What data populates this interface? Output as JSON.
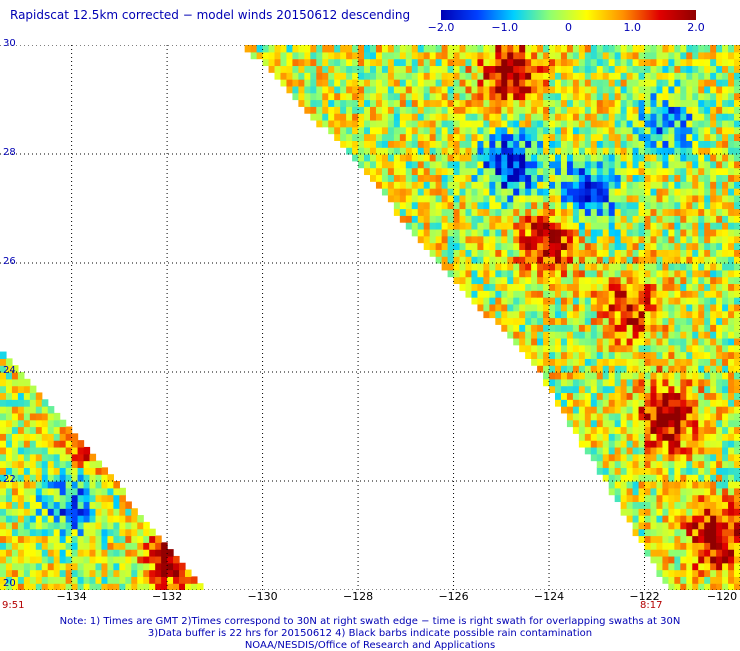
{
  "title": "Rapidscat 12.5km corrected − model winds 20150612 descending",
  "colorbar": {
    "labels": [
      "−2.0",
      "−1.0",
      "0",
      "1.0",
      "2.0"
    ],
    "values": [
      -2.0,
      -1.0,
      0,
      1.0,
      2.0
    ],
    "stops": [
      "#0000b4",
      "#0040ff",
      "#00d0ff",
      "#90ff70",
      "#ffff00",
      "#ff9000",
      "#e00000",
      "#900000"
    ]
  },
  "chart_data": {
    "type": "heatmap",
    "title": "Rapidscat 12.5km corrected − model winds 20150612 descending",
    "xlim": [
      -135.5,
      -120
    ],
    "ylim": [
      20,
      30
    ],
    "x_ticks": [
      "−134",
      "−132",
      "−130",
      "−128",
      "−126",
      "−124",
      "−122",
      "−120"
    ],
    "x_tick_values": [
      -134,
      -132,
      -130,
      -128,
      -126,
      -124,
      -122,
      -120
    ],
    "y_ticks": [
      "20",
      "22",
      "24",
      "26",
      "28",
      "30"
    ],
    "y_tick_values": [
      20,
      22,
      24,
      26,
      28,
      30
    ],
    "grid": true,
    "value_range": [
      -2.0,
      2.0
    ],
    "swaths": [
      {
        "region": "northeast",
        "polygon": [
          [
            -130.4,
            30
          ],
          [
            -120,
            30
          ],
          [
            -120,
            20
          ],
          [
            -121.5,
            20
          ],
          [
            -124.2,
            24
          ],
          [
            -126.3,
            26
          ],
          [
            -128.2,
            28
          ]
        ]
      },
      {
        "region": "southwest",
        "polygon": [
          [
            -135.5,
            24.5
          ],
          [
            -131.2,
            20
          ],
          [
            -135.5,
            20
          ]
        ]
      }
    ],
    "hotspots": [
      {
        "lon": -124.8,
        "lat": 29.5,
        "value": 2.0
      },
      {
        "lon": -124.8,
        "lat": 27.8,
        "value": -2.0
      },
      {
        "lon": -123.2,
        "lat": 27.3,
        "value": -1.8
      },
      {
        "lon": -121.5,
        "lat": 28.6,
        "value": -1.2
      },
      {
        "lon": -124.0,
        "lat": 26.4,
        "value": 1.8
      },
      {
        "lon": -122.3,
        "lat": 25.2,
        "value": 1.4
      },
      {
        "lon": -121.5,
        "lat": 23.2,
        "value": 2.0
      },
      {
        "lon": -120.5,
        "lat": 21.0,
        "value": 2.0
      },
      {
        "lon": -133.5,
        "lat": 22.8,
        "value": 1.7
      },
      {
        "lon": -131.8,
        "lat": 20.6,
        "value": 1.9
      },
      {
        "lon": -134.0,
        "lat": 21.6,
        "value": -1.3
      }
    ]
  },
  "times": {
    "left": "9:51",
    "right": "8:17"
  },
  "notes": [
    "Note: 1) Times are GMT 2)Times correspond to 30N at right swath edge − time is right swath for overlapping swaths at 30N",
    "3)Data buffer is 22 hrs for 20150612 4) Black barbs indicate possible rain contamination",
    "NOAA/NESDIS/Office of Research and Applications"
  ]
}
